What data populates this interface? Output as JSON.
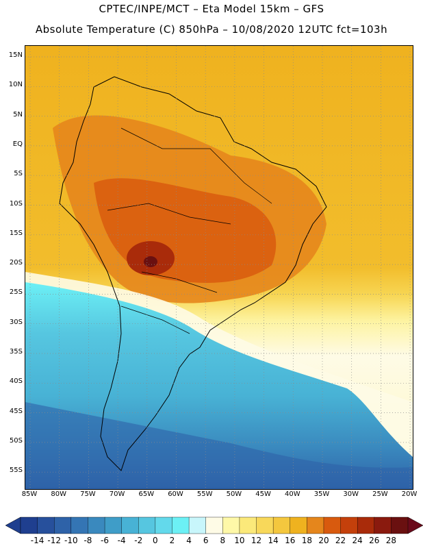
{
  "header": {
    "line1": "CPTEC/INPE/MCT –  Eta Model 15km – GFS",
    "line2": "Absolute Temperature (C) 850hPa – 10/08/2020 12UTC fct=103h"
  },
  "map": {
    "lat_labels": [
      "15N",
      "10N",
      "5N",
      "EQ",
      "5S",
      "10S",
      "15S",
      "20S",
      "25S",
      "30S",
      "35S",
      "40S",
      "45S",
      "50S",
      "55S"
    ],
    "lon_labels": [
      "85W",
      "80W",
      "75W",
      "70W",
      "65W",
      "60W",
      "55W",
      "50W",
      "45W",
      "40W",
      "35W",
      "30W",
      "25W",
      "20W"
    ]
  },
  "colorbar": {
    "labels": [
      "-14",
      "-12",
      "-10",
      "-8",
      "-6",
      "-4",
      "-2",
      "0",
      "2",
      "4",
      "6",
      "8",
      "10",
      "12",
      "14",
      "16",
      "18",
      "20",
      "22",
      "24",
      "26",
      "28"
    ],
    "colors": [
      "#1f3f8f",
      "#27509c",
      "#2e62a8",
      "#3475b4",
      "#3a89be",
      "#3f9dc8",
      "#48b2d5",
      "#56c6e0",
      "#63d9eb",
      "#6cf0f5",
      "#c8f6fb",
      "#fefbe6",
      "#fef8a8",
      "#fbe97a",
      "#f8d85a",
      "#f4c73e",
      "#efb21f",
      "#e5861c",
      "#d85a0e",
      "#c4400b",
      "#a92b0a",
      "#8a1a0e",
      "#6a1010"
    ],
    "min_arrow_color": "#1f3f8f",
    "max_arrow_color": "#6a0a1a"
  }
}
